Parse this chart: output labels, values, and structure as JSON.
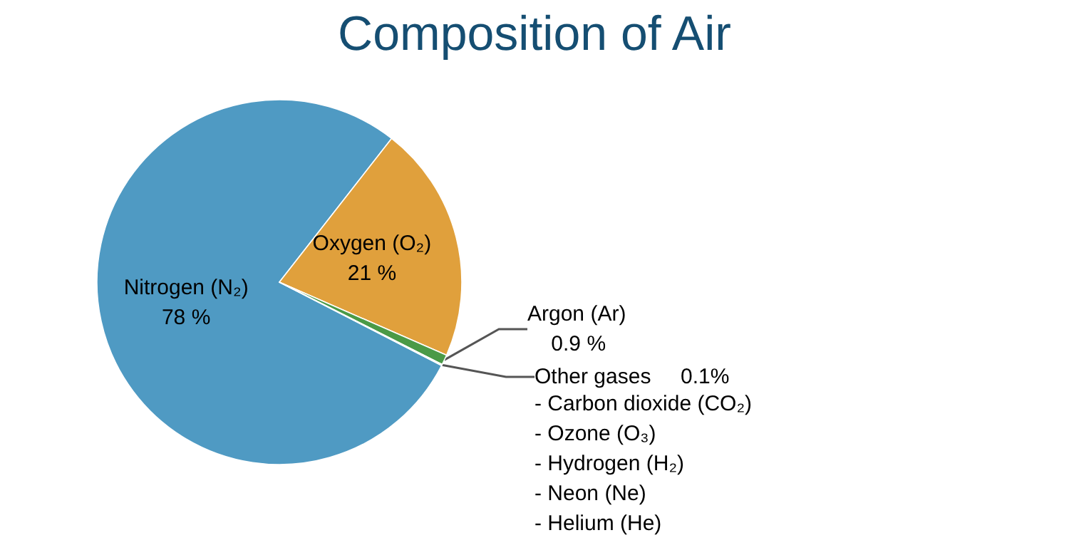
{
  "chart_data": {
    "type": "pie",
    "title": "Composition of Air",
    "categories": [
      "Nitrogen (N₂)",
      "Oxygen (O₂)",
      "Argon (Ar)",
      "Other gases"
    ],
    "values": [
      78,
      21,
      0.9,
      0.1
    ],
    "value_labels": [
      "78 %",
      "21 %",
      "0.9 %",
      "0.1%"
    ],
    "colors": [
      "#4f9ac3",
      "#e0a03c",
      "#4a9a47",
      "#3f3f3f"
    ],
    "annotations": [
      "- Carbon dioxide (CO₂)",
      "- Ozone (O₃)",
      "- Hydrogen (H₂)",
      "- Neon (Ne)",
      "- Helium (He)"
    ],
    "legend": false
  }
}
